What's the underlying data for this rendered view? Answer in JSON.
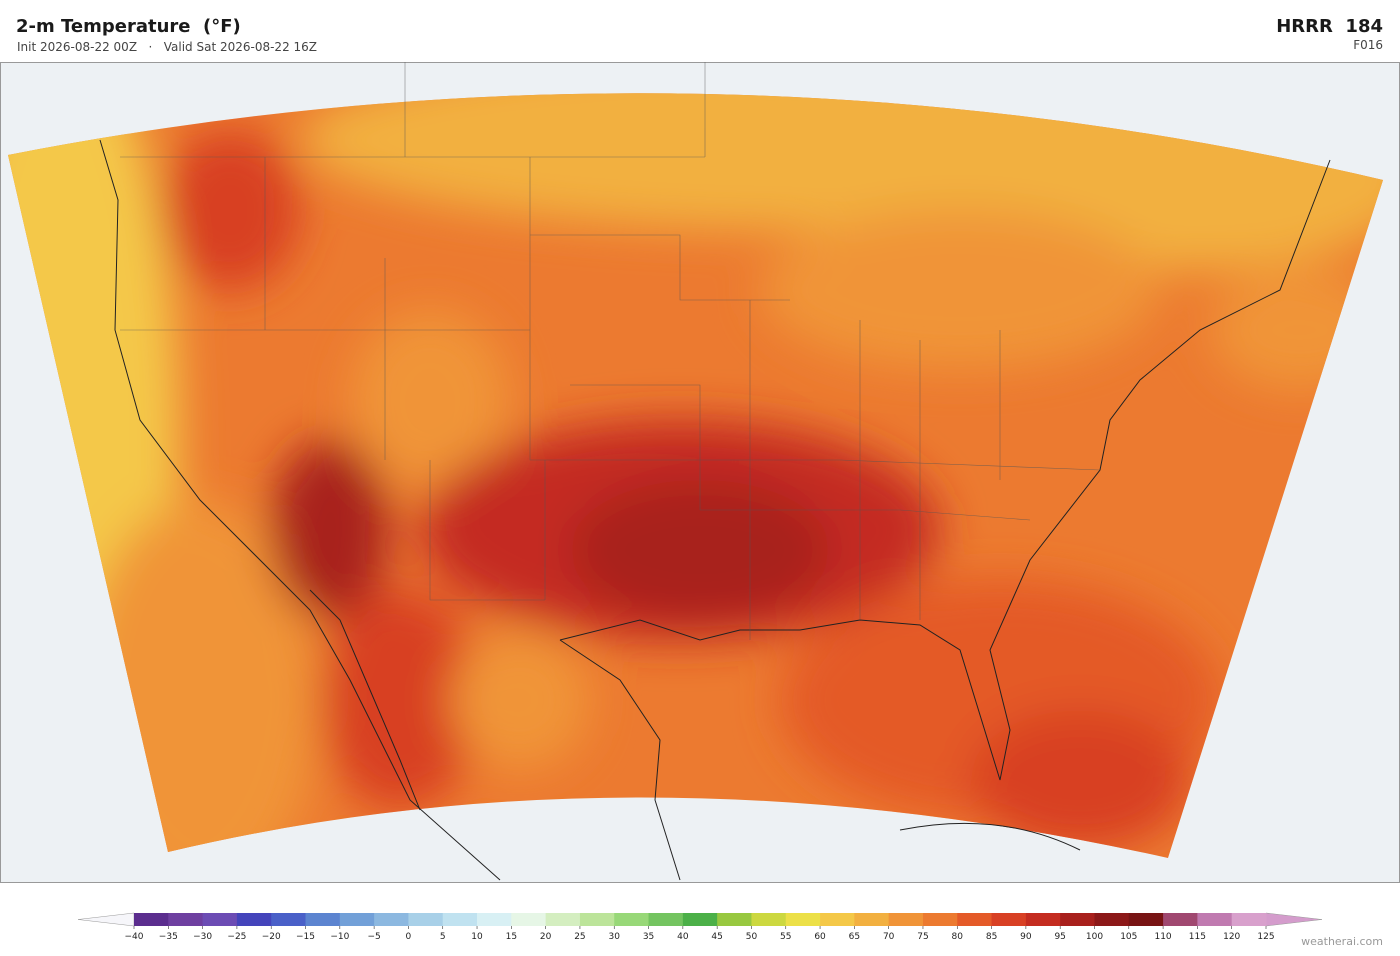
{
  "header": {
    "title": "2-m Temperature  (°F)",
    "subtitle": "Init 2026-08-22 00Z   ·   Valid Sat 2026-08-22 16Z",
    "model": "HRRR  184",
    "forecast": "F016"
  },
  "colorbar": {
    "ticks": [
      {
        "value": -40,
        "label": "−40"
      },
      {
        "value": -35,
        "label": "−35"
      },
      {
        "value": -30,
        "label": "−30"
      },
      {
        "value": -25,
        "label": "−25"
      },
      {
        "value": -20,
        "label": "−20"
      },
      {
        "value": -15,
        "label": "−15"
      },
      {
        "value": -10,
        "label": "−10"
      },
      {
        "value": -5,
        "label": "−5"
      },
      0,
      5,
      10,
      15,
      20,
      25,
      30,
      35,
      40,
      45,
      50,
      55,
      60,
      65,
      70,
      75,
      80,
      85,
      90,
      95,
      100,
      105,
      110,
      115,
      120,
      125
    ],
    "colors": [
      "#5b2d8e",
      "#6e3fa0",
      "#6c4cb4",
      "#4444bb",
      "#4a60c8",
      "#5c84d0",
      "#72a0d8",
      "#8cb8e0",
      "#a8d0e8",
      "#c0e2f0",
      "#d8f0f4",
      "#e6f6e6",
      "#d4eec0",
      "#bce49a",
      "#98d878",
      "#74c460",
      "#4cb048",
      "#98c840",
      "#ccd840",
      "#ece048",
      "#f4c848",
      "#f2b040",
      "#f09438",
      "#ec7a30",
      "#e45a28",
      "#d84024",
      "#c42c20",
      "#a8201c",
      "#8c1818",
      "#781414",
      "#a04870",
      "#c07ab0",
      "#d8a0cc"
    ],
    "extend_colors": [
      "#f6f6fa",
      "#d49ccc"
    ]
  },
  "footer": {
    "credit": "weatherai.com"
  }
}
